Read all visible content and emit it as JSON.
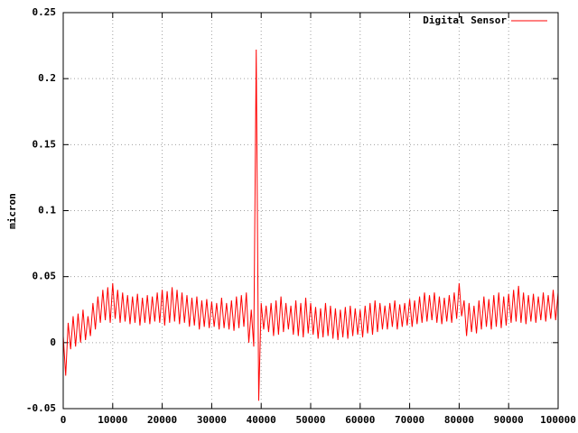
{
  "chart_data": {
    "type": "line",
    "y_label": "micron",
    "xlim": [
      0,
      100000
    ],
    "ylim": [
      -0.05,
      0.25
    ],
    "xticks": [
      0,
      10000,
      20000,
      30000,
      40000,
      50000,
      60000,
      70000,
      80000,
      90000,
      100000
    ],
    "yticks": [
      -0.05,
      0,
      0.05,
      0.1,
      0.15,
      0.2,
      0.25
    ],
    "grid": true,
    "legend": "top-right",
    "x": [
      0,
      500,
      1000,
      1500,
      2000,
      2500,
      3000,
      3500,
      4000,
      4500,
      5000,
      5500,
      6000,
      6500,
      7000,
      7500,
      8000,
      8500,
      9000,
      9500,
      10000,
      10500,
      11000,
      11500,
      12000,
      12500,
      13000,
      13500,
      14000,
      14500,
      15000,
      15500,
      16000,
      16500,
      17000,
      17500,
      18000,
      18500,
      19000,
      19500,
      20000,
      20500,
      21000,
      21500,
      22000,
      22500,
      23000,
      23500,
      24000,
      24500,
      25000,
      25500,
      26000,
      26500,
      27000,
      27500,
      28000,
      28500,
      29000,
      29500,
      30000,
      30500,
      31000,
      31500,
      32000,
      32500,
      33000,
      33500,
      34000,
      34500,
      35000,
      35500,
      36000,
      36500,
      37000,
      37500,
      38000,
      38500,
      39000,
      39500,
      40000,
      40500,
      41000,
      41500,
      42000,
      42500,
      43000,
      43500,
      44000,
      44500,
      45000,
      45500,
      46000,
      46500,
      47000,
      47500,
      48000,
      48500,
      49000,
      49500,
      50000,
      50500,
      51000,
      51500,
      52000,
      52500,
      53000,
      53500,
      54000,
      54500,
      55000,
      55500,
      56000,
      56500,
      57000,
      57500,
      58000,
      58500,
      59000,
      59500,
      60000,
      60500,
      61000,
      61500,
      62000,
      62500,
      63000,
      63500,
      64000,
      64500,
      65000,
      65500,
      66000,
      66500,
      67000,
      67500,
      68000,
      68500,
      69000,
      69500,
      70000,
      70500,
      71000,
      71500,
      72000,
      72500,
      73000,
      73500,
      74000,
      74500,
      75000,
      75500,
      76000,
      76500,
      77000,
      77500,
      78000,
      78500,
      79000,
      79500,
      80000,
      80500,
      81000,
      81500,
      82000,
      82500,
      83000,
      83500,
      84000,
      84500,
      85000,
      85500,
      86000,
      86500,
      87000,
      87500,
      88000,
      88500,
      89000,
      89500,
      90000,
      90500,
      91000,
      91500,
      92000,
      92500,
      93000,
      93500,
      94000,
      94500,
      95000,
      95500,
      96000,
      96500,
      97000,
      97500,
      98000,
      98500,
      99000,
      99500,
      100000
    ],
    "series": [
      {
        "name": "Digital Sensor",
        "color": "#ff0000",
        "values": [
          0.005,
          -0.025,
          0.015,
          -0.005,
          0.02,
          -0.003,
          0.022,
          0,
          0.025,
          0.002,
          0.02,
          0.005,
          0.03,
          0.01,
          0.035,
          0.015,
          0.04,
          0.017,
          0.042,
          0.015,
          0.045,
          0.018,
          0.04,
          0.015,
          0.038,
          0.016,
          0.036,
          0.014,
          0.035,
          0.015,
          0.037,
          0.013,
          0.034,
          0.015,
          0.036,
          0.014,
          0.035,
          0.016,
          0.038,
          0.015,
          0.04,
          0.013,
          0.039,
          0.015,
          0.042,
          0.016,
          0.04,
          0.014,
          0.038,
          0.015,
          0.036,
          0.012,
          0.034,
          0.013,
          0.035,
          0.01,
          0.032,
          0.012,
          0.033,
          0.011,
          0.031,
          0.012,
          0.03,
          0.01,
          0.034,
          0.011,
          0.03,
          0.01,
          0.032,
          0.009,
          0.035,
          0.011,
          0.036,
          0.012,
          0.038,
          0,
          0.025,
          -0.003,
          0.222,
          -0.044,
          0.03,
          0.01,
          0.028,
          0.008,
          0.03,
          0.005,
          0.032,
          0.006,
          0.035,
          0.008,
          0.03,
          0.01,
          0.028,
          0.006,
          0.032,
          0.005,
          0.03,
          0.004,
          0.034,
          0.007,
          0.03,
          0.006,
          0.027,
          0.003,
          0.026,
          0.004,
          0.03,
          0.005,
          0.028,
          0.003,
          0.026,
          0.002,
          0.025,
          0.004,
          0.027,
          0.003,
          0.028,
          0.005,
          0.026,
          0.006,
          0.025,
          0.004,
          0.028,
          0.007,
          0.03,
          0.006,
          0.032,
          0.008,
          0.03,
          0.01,
          0.028,
          0.01,
          0.03,
          0.012,
          0.032,
          0.01,
          0.029,
          0.012,
          0.03,
          0.013,
          0.033,
          0.012,
          0.032,
          0.014,
          0.035,
          0.015,
          0.038,
          0.016,
          0.036,
          0.017,
          0.038,
          0.015,
          0.035,
          0.014,
          0.034,
          0.016,
          0.036,
          0.015,
          0.038,
          0.018,
          0.045,
          0.02,
          0.032,
          0.005,
          0.03,
          0.008,
          0.028,
          0.007,
          0.032,
          0.01,
          0.035,
          0.012,
          0.033,
          0.01,
          0.036,
          0.012,
          0.038,
          0.011,
          0.035,
          0.013,
          0.037,
          0.015,
          0.04,
          0.016,
          0.043,
          0.015,
          0.038,
          0.014,
          0.036,
          0.016,
          0.037,
          0.015,
          0.035,
          0.017,
          0.038,
          0.016,
          0.036,
          0.018,
          0.04,
          0.017,
          0.038
        ]
      }
    ]
  }
}
